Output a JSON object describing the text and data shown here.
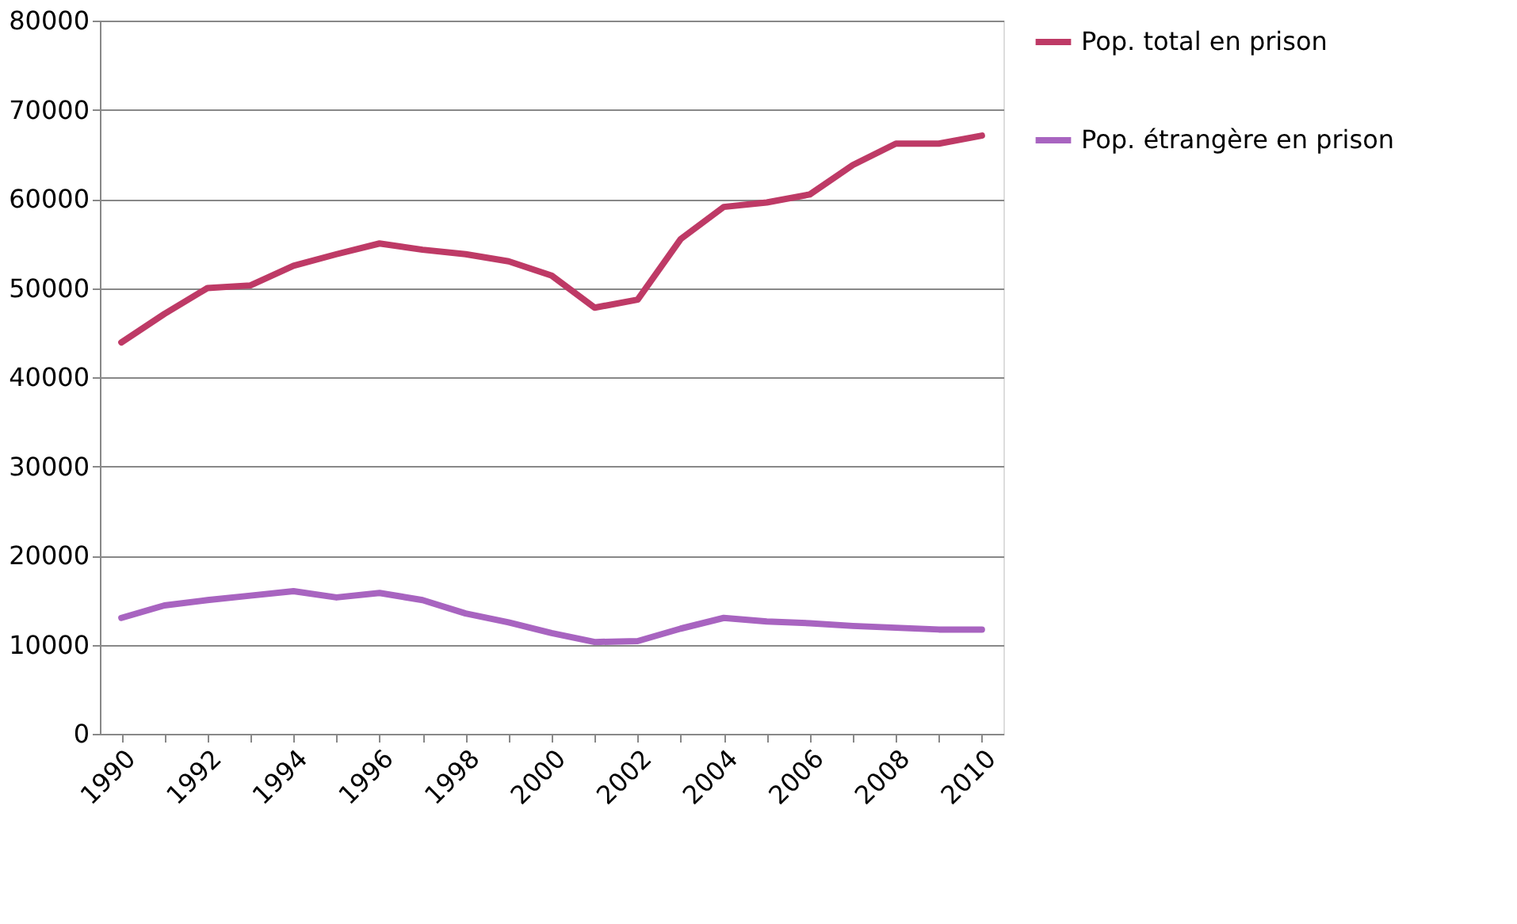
{
  "chart_data": {
    "type": "line",
    "categories": [
      "1990",
      null,
      "1992",
      null,
      "1994",
      null,
      "1996",
      null,
      "1998",
      null,
      "2000",
      null,
      "2002",
      null,
      "2004",
      null,
      "2006",
      null,
      "2008",
      null,
      "2010"
    ],
    "series": [
      {
        "name": "Pop. total en prison",
        "color": "#be3a66",
        "values": [
          43900,
          47100,
          50000,
          50300,
          52500,
          53800,
          55000,
          54300,
          53800,
          53000,
          51400,
          47800,
          48700,
          55500,
          59100,
          59600,
          60500,
          63800,
          66200,
          66200,
          67100
        ]
      },
      {
        "name": "Pop. étrangère en prison",
        "color": "#a864c0",
        "values": [
          13000,
          14400,
          15000,
          15500,
          16000,
          15300,
          15800,
          15000,
          13500,
          12500,
          11300,
          10300,
          10400,
          11800,
          13000,
          12600,
          12400,
          12100,
          11900,
          11700,
          11700
        ]
      }
    ],
    "ylim": [
      0,
      80000
    ],
    "yticks": [
      0,
      10000,
      20000,
      30000,
      40000,
      50000,
      60000,
      70000,
      80000
    ],
    "grid": "y",
    "legend": "right",
    "marker": "none",
    "line_style": "solid"
  }
}
